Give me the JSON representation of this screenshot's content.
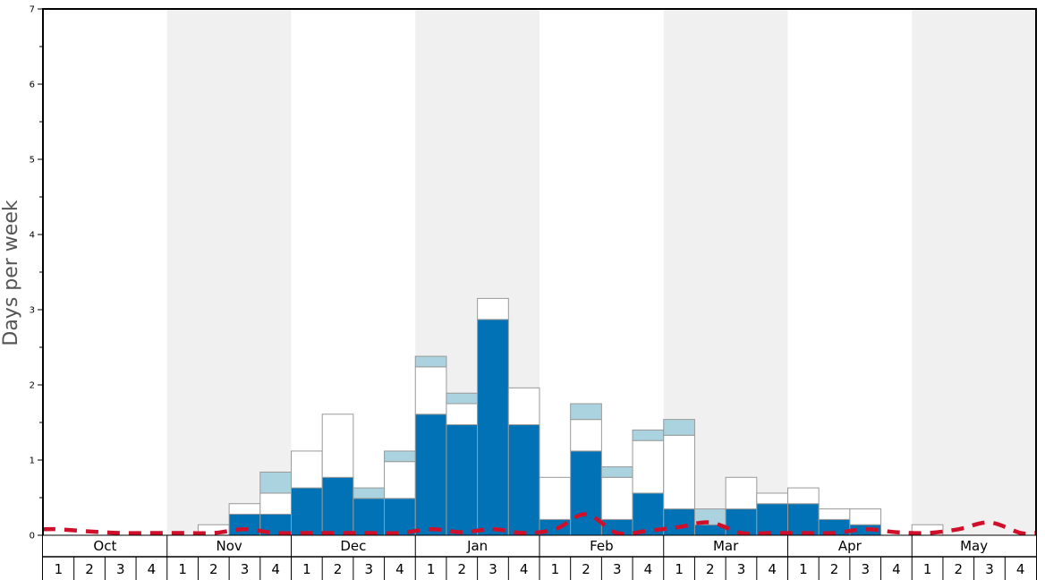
{
  "chart_data": {
    "type": "bar",
    "ylabel": "Days per week",
    "ylim": [
      0,
      7
    ],
    "yticks": [
      "0",
      "1",
      "2",
      "3",
      "4",
      "5",
      "6",
      "7"
    ],
    "months": [
      "Oct",
      "Nov",
      "Dec",
      "Jan",
      "Feb",
      "Mar",
      "Apr",
      "May"
    ],
    "weeks": [
      "1",
      "2",
      "3",
      "4"
    ],
    "colors": {
      "dark_bar": "#0072b5",
      "light_bar": "#aad3df",
      "white_bar": "#ffffff",
      "bar_edge": "#999999",
      "band": "#f0f0f0",
      "line": "#d0102a"
    },
    "stacked_layers": [
      {
        "values": [
          0,
          0,
          0,
          0,
          0,
          0,
          0.28,
          0.28,
          0.63,
          0.77,
          0.49,
          0.49,
          1.61,
          1.47,
          2.87,
          1.47,
          0.21,
          1.12,
          0.21,
          0.56,
          0.35,
          0.14,
          0.35,
          0.42,
          0.42,
          0.21,
          0.14,
          0,
          0,
          0,
          0,
          0
        ]
      },
      {
        "values": [
          0,
          0,
          0,
          0,
          0,
          0.14,
          0.14,
          0.28,
          0.49,
          0.84,
          0,
          0.49,
          0.63,
          0.28,
          0.28,
          0.49,
          0.56,
          0.42,
          0.56,
          0.7,
          0.98,
          0,
          0.42,
          0.14,
          0.21,
          0.14,
          0.21,
          0,
          0.14,
          0,
          0,
          0
        ]
      },
      {
        "values": [
          0,
          0,
          0,
          0,
          0,
          0,
          0,
          0.28,
          0,
          0,
          0.14,
          0.14,
          0.14,
          0.14,
          0,
          0,
          0,
          0.21,
          0.14,
          0.14,
          0.21,
          0.21,
          0,
          0,
          0,
          0,
          0,
          0,
          0,
          0,
          0,
          0
        ]
      }
    ],
    "line_values": [
      0.08,
      0.05,
      0.03,
      0.03,
      0.03,
      0.03,
      0.08,
      0.03,
      0.03,
      0.03,
      0.03,
      0.03,
      0.08,
      0.04,
      0.08,
      0.03,
      0.08,
      0.28,
      0.03,
      0.06,
      0.11,
      0.17,
      0.03,
      0.03,
      0.03,
      0.03,
      0.08,
      0.04,
      0.03,
      0.08,
      0.17,
      0.03
    ]
  }
}
